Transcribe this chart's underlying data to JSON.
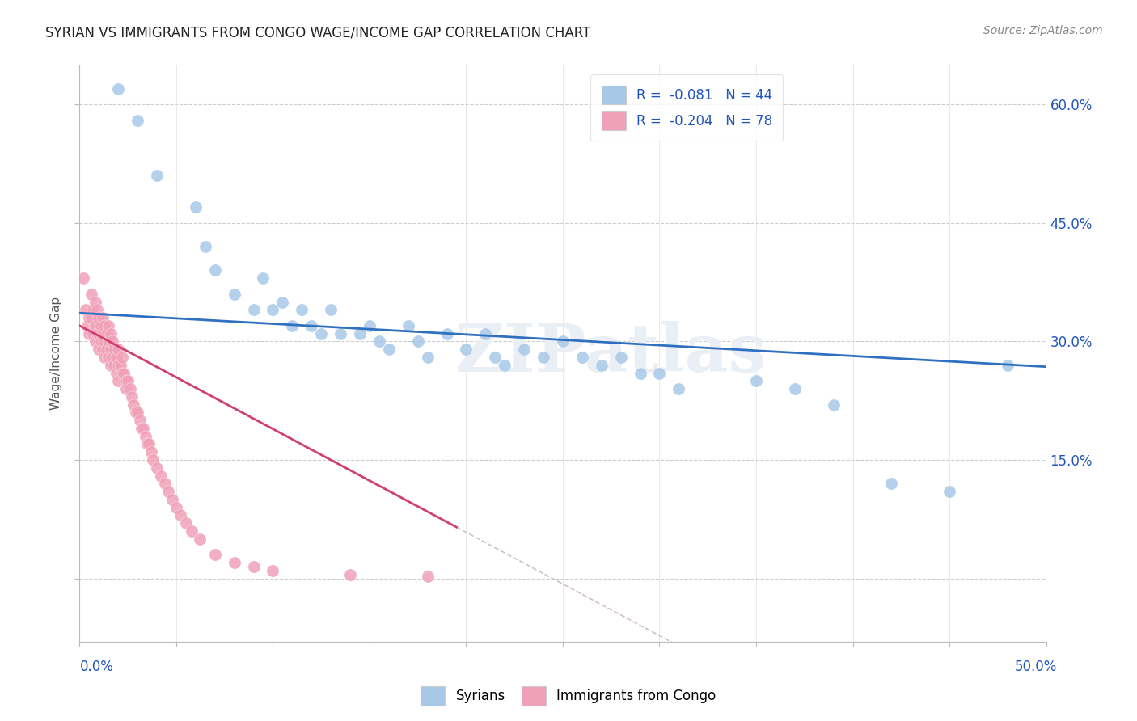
{
  "title": "SYRIAN VS IMMIGRANTS FROM CONGO WAGE/INCOME GAP CORRELATION CHART",
  "source": "Source: ZipAtlas.com",
  "ylabel": "Wage/Income Gap",
  "xlim": [
    0.0,
    0.5
  ],
  "ylim": [
    -0.08,
    0.65
  ],
  "color_syrian": "#A8C8E8",
  "color_congo": "#F0A0B8",
  "color_line_syrian": "#3070C0",
  "color_line_congo": "#D04070",
  "color_line_dashed": "#D0C0C8",
  "watermark": "ZIPatlas",
  "background_color": "#FFFFFF",
  "syrians_x": [
    0.02,
    0.03,
    0.04,
    0.06,
    0.065,
    0.07,
    0.08,
    0.09,
    0.095,
    0.1,
    0.105,
    0.11,
    0.115,
    0.12,
    0.125,
    0.13,
    0.135,
    0.145,
    0.15,
    0.155,
    0.16,
    0.17,
    0.175,
    0.18,
    0.19,
    0.2,
    0.21,
    0.215,
    0.22,
    0.23,
    0.24,
    0.25,
    0.26,
    0.27,
    0.28,
    0.29,
    0.3,
    0.31,
    0.35,
    0.37,
    0.39,
    0.42,
    0.45,
    0.48
  ],
  "syrians_y": [
    0.62,
    0.58,
    0.51,
    0.47,
    0.42,
    0.39,
    0.36,
    0.34,
    0.38,
    0.34,
    0.35,
    0.32,
    0.34,
    0.32,
    0.31,
    0.34,
    0.31,
    0.31,
    0.32,
    0.3,
    0.29,
    0.32,
    0.3,
    0.28,
    0.31,
    0.29,
    0.31,
    0.28,
    0.27,
    0.29,
    0.28,
    0.3,
    0.28,
    0.27,
    0.28,
    0.26,
    0.26,
    0.24,
    0.25,
    0.24,
    0.22,
    0.12,
    0.11,
    0.27
  ],
  "congo_x": [
    0.002,
    0.003,
    0.004,
    0.005,
    0.005,
    0.006,
    0.006,
    0.007,
    0.007,
    0.008,
    0.008,
    0.008,
    0.009,
    0.009,
    0.01,
    0.01,
    0.01,
    0.011,
    0.011,
    0.012,
    0.012,
    0.012,
    0.013,
    0.013,
    0.013,
    0.014,
    0.014,
    0.015,
    0.015,
    0.015,
    0.016,
    0.016,
    0.016,
    0.017,
    0.017,
    0.018,
    0.018,
    0.019,
    0.019,
    0.02,
    0.02,
    0.02,
    0.021,
    0.022,
    0.022,
    0.023,
    0.024,
    0.024,
    0.025,
    0.026,
    0.027,
    0.028,
    0.029,
    0.03,
    0.031,
    0.032,
    0.033,
    0.034,
    0.035,
    0.036,
    0.037,
    0.038,
    0.04,
    0.042,
    0.044,
    0.046,
    0.048,
    0.05,
    0.052,
    0.055,
    0.058,
    0.062,
    0.07,
    0.08,
    0.09,
    0.1,
    0.14,
    0.18
  ],
  "congo_y": [
    0.38,
    0.34,
    0.32,
    0.33,
    0.31,
    0.36,
    0.33,
    0.34,
    0.31,
    0.35,
    0.32,
    0.3,
    0.34,
    0.31,
    0.33,
    0.31,
    0.29,
    0.32,
    0.3,
    0.33,
    0.31,
    0.29,
    0.32,
    0.3,
    0.28,
    0.31,
    0.29,
    0.32,
    0.3,
    0.28,
    0.31,
    0.29,
    0.27,
    0.3,
    0.28,
    0.29,
    0.27,
    0.28,
    0.26,
    0.29,
    0.27,
    0.25,
    0.27,
    0.26,
    0.28,
    0.26,
    0.25,
    0.24,
    0.25,
    0.24,
    0.23,
    0.22,
    0.21,
    0.21,
    0.2,
    0.19,
    0.19,
    0.18,
    0.17,
    0.17,
    0.16,
    0.15,
    0.14,
    0.13,
    0.12,
    0.11,
    0.1,
    0.09,
    0.08,
    0.07,
    0.06,
    0.05,
    0.03,
    0.02,
    0.015,
    0.01,
    0.005,
    0.003
  ]
}
